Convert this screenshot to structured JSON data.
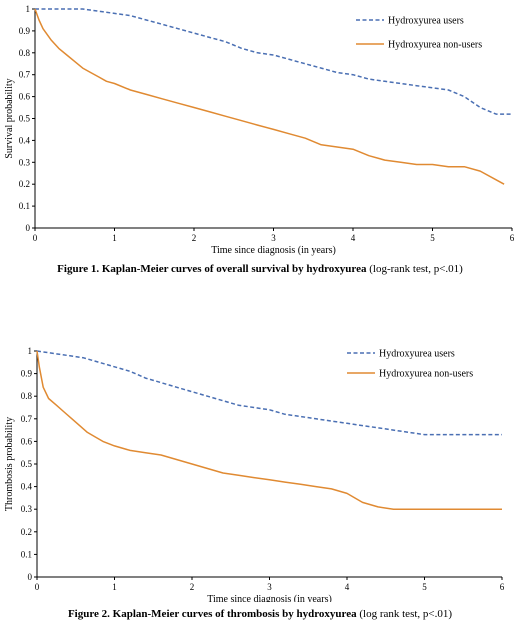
{
  "chart_data": [
    {
      "type": "line",
      "xlabel": "Time since diagnosis (in years)",
      "ylabel": "Survival probability",
      "xlim": [
        0,
        6
      ],
      "ylim": [
        0,
        1
      ],
      "xticks": [
        "0",
        "1",
        "2",
        "3",
        "4",
        "5",
        "6"
      ],
      "yticks": [
        "0",
        "0.1",
        "0.2",
        "0.3",
        "0.4",
        "0.5",
        "0.6",
        "0.7",
        "0.8",
        "0.9",
        "1"
      ],
      "grid": false,
      "legend_position": "top-right",
      "caption_bold": "Figure 1. Kaplan-Meier curves of overall survival by hydroxyurea",
      "caption_rest": " (log-rank test, p<.01)",
      "series": [
        {
          "name": "Hydroxyurea users",
          "style": "dashed",
          "color": "#4a6fb3",
          "x": [
            0,
            0.3,
            0.6,
            0.8,
            1.0,
            1.2,
            1.4,
            1.6,
            1.8,
            2.0,
            2.2,
            2.4,
            2.6,
            2.8,
            3.0,
            3.2,
            3.4,
            3.6,
            3.8,
            4.0,
            4.2,
            4.4,
            4.6,
            4.8,
            5.0,
            5.2,
            5.4,
            5.6,
            5.8,
            6.0
          ],
          "y": [
            1.0,
            1.0,
            1.0,
            0.99,
            0.98,
            0.97,
            0.95,
            0.93,
            0.91,
            0.89,
            0.87,
            0.85,
            0.82,
            0.8,
            0.79,
            0.77,
            0.75,
            0.73,
            0.71,
            0.7,
            0.68,
            0.67,
            0.66,
            0.65,
            0.64,
            0.63,
            0.6,
            0.55,
            0.52,
            0.52
          ]
        },
        {
          "name": "Hydroxyurea non-users",
          "style": "solid",
          "color": "#e08a32",
          "x": [
            0,
            0.05,
            0.1,
            0.2,
            0.3,
            0.4,
            0.5,
            0.6,
            0.7,
            0.8,
            0.9,
            1.0,
            1.2,
            1.4,
            1.6,
            1.8,
            2.0,
            2.2,
            2.4,
            2.6,
            2.8,
            3.0,
            3.2,
            3.4,
            3.6,
            3.8,
            4.0,
            4.2,
            4.4,
            4.6,
            4.8,
            5.0,
            5.2,
            5.4,
            5.6,
            5.8,
            5.9
          ],
          "y": [
            1.0,
            0.95,
            0.91,
            0.86,
            0.82,
            0.79,
            0.76,
            0.73,
            0.71,
            0.69,
            0.67,
            0.66,
            0.63,
            0.61,
            0.59,
            0.57,
            0.55,
            0.53,
            0.51,
            0.49,
            0.47,
            0.45,
            0.43,
            0.41,
            0.38,
            0.37,
            0.36,
            0.33,
            0.31,
            0.3,
            0.29,
            0.29,
            0.28,
            0.28,
            0.26,
            0.22,
            0.2
          ]
        }
      ]
    },
    {
      "type": "line",
      "xlabel": "Time since diagnosis (in years)",
      "ylabel": "Thrombosis probability",
      "xlim": [
        0,
        6
      ],
      "ylim": [
        0,
        1
      ],
      "xticks": [
        "0",
        "1",
        "2",
        "3",
        "4",
        "5",
        "6"
      ],
      "yticks": [
        "0",
        "0.1",
        "0.2",
        "0.3",
        "0.4",
        "0.5",
        "0.6",
        "0.7",
        "0.8",
        "0.9",
        "1"
      ],
      "grid": false,
      "legend_position": "top-right",
      "caption_bold": "Figure 2. Kaplan-Meier curves of thrombosis by hydroxyurea",
      "caption_rest": " (log rank test, p<.01)",
      "series": [
        {
          "name": "Hydroxyurea users",
          "style": "dashed",
          "color": "#4a6fb3",
          "x": [
            0,
            0.2,
            0.4,
            0.6,
            0.8,
            1.0,
            1.2,
            1.4,
            1.6,
            1.8,
            2.0,
            2.2,
            2.4,
            2.6,
            2.8,
            3.0,
            3.2,
            3.4,
            3.6,
            3.8,
            4.0,
            4.2,
            4.4,
            4.6,
            4.8,
            5.0,
            5.5,
            6.0
          ],
          "y": [
            1.0,
            0.99,
            0.98,
            0.97,
            0.95,
            0.93,
            0.91,
            0.88,
            0.86,
            0.84,
            0.82,
            0.8,
            0.78,
            0.76,
            0.75,
            0.74,
            0.72,
            0.71,
            0.7,
            0.69,
            0.68,
            0.67,
            0.66,
            0.65,
            0.64,
            0.63,
            0.63,
            0.63
          ]
        },
        {
          "name": "Hydroxyurea non-users",
          "style": "solid",
          "color": "#e08a32",
          "x": [
            0,
            0.03,
            0.08,
            0.15,
            0.25,
            0.35,
            0.45,
            0.55,
            0.65,
            0.75,
            0.85,
            1.0,
            1.2,
            1.4,
            1.6,
            1.8,
            2.0,
            2.2,
            2.4,
            2.6,
            2.8,
            3.0,
            3.2,
            3.4,
            3.6,
            3.8,
            4.0,
            4.2,
            4.4,
            4.6,
            4.8,
            5.0,
            5.5,
            6.0
          ],
          "y": [
            1.0,
            0.93,
            0.84,
            0.79,
            0.76,
            0.73,
            0.7,
            0.67,
            0.64,
            0.62,
            0.6,
            0.58,
            0.56,
            0.55,
            0.54,
            0.52,
            0.5,
            0.48,
            0.46,
            0.45,
            0.44,
            0.43,
            0.42,
            0.41,
            0.4,
            0.39,
            0.37,
            0.33,
            0.31,
            0.3,
            0.3,
            0.3,
            0.3,
            0.3
          ]
        }
      ]
    }
  ]
}
